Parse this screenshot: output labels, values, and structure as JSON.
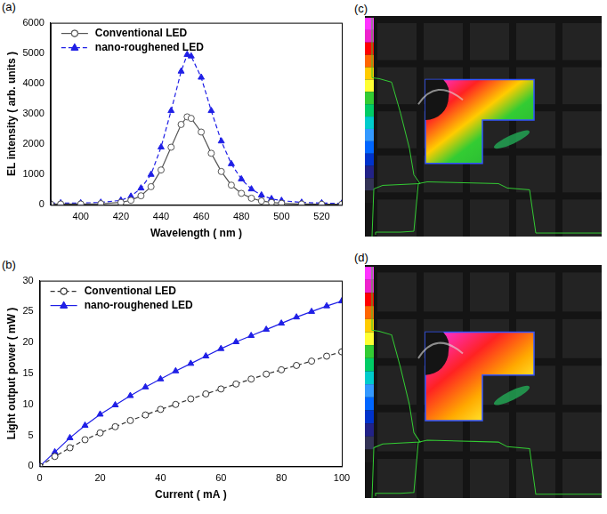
{
  "chart_data": [
    {
      "type": "line",
      "panel": "(a)",
      "x_label": "Wavelength ( nm )",
      "y_label": "EL intensity ( arb. units )",
      "x": [
        385,
        390,
        400,
        410,
        420,
        425,
        430,
        435,
        440,
        445,
        450,
        453,
        455,
        460,
        465,
        470,
        475,
        480,
        485,
        490,
        495,
        500,
        510,
        520,
        530
      ],
      "series": [
        {
          "name": "Conventional LED",
          "color": "#555555",
          "marker": "open_circle",
          "line_style": "solid",
          "values": [
            30,
            30,
            30,
            40,
            80,
            150,
            300,
            600,
            1150,
            1900,
            2650,
            2900,
            2850,
            2400,
            1700,
            1100,
            650,
            380,
            220,
            130,
            80,
            50,
            30,
            20,
            20
          ]
        },
        {
          "name": "nano-roughened LED",
          "color": "#1f1fe6",
          "marker": "triangle",
          "line_style": "dashed",
          "values": [
            60,
            60,
            60,
            80,
            150,
            280,
            550,
            1000,
            1900,
            3100,
            4400,
            4950,
            4900,
            4200,
            3100,
            2100,
            1350,
            850,
            520,
            320,
            200,
            140,
            80,
            60,
            50
          ]
        }
      ],
      "xlim": [
        385,
        530
      ],
      "xticks": [
        400,
        420,
        440,
        460,
        480,
        500,
        520
      ],
      "ylim": [
        0,
        6000
      ],
      "yticks": [
        0,
        1000,
        2000,
        3000,
        4000,
        5000,
        6000
      ],
      "grid": false,
      "legend": "upper left"
    },
    {
      "type": "line",
      "panel": "(b)",
      "x_label": "Current ( mA )",
      "y_label": "Light output power ( mW )",
      "x": [
        0,
        5,
        10,
        15,
        20,
        25,
        30,
        35,
        40,
        45,
        50,
        55,
        60,
        65,
        70,
        75,
        80,
        85,
        90,
        95,
        100
      ],
      "series": [
        {
          "name": "Conventional LED",
          "color": "#333333",
          "marker": "open_circle",
          "line_style": "dashed",
          "values": [
            0,
            1.6,
            3.0,
            4.3,
            5.4,
            6.4,
            7.4,
            8.3,
            9.2,
            10.0,
            10.9,
            11.7,
            12.5,
            13.3,
            14.1,
            14.9,
            15.6,
            16.3,
            17.0,
            17.8,
            18.5
          ]
        },
        {
          "name": "nano-roughened LED",
          "color": "#1f1fe6",
          "marker": "triangle",
          "line_style": "solid",
          "values": [
            0,
            2.3,
            4.6,
            6.6,
            8.4,
            9.9,
            11.4,
            12.8,
            14.1,
            15.4,
            16.6,
            17.8,
            19.0,
            20.1,
            21.1,
            22.1,
            23.1,
            24.1,
            25.0,
            25.9,
            26.7
          ]
        }
      ],
      "xlim": [
        0,
        100
      ],
      "xticks": [
        0,
        20,
        40,
        60,
        80,
        100
      ],
      "ylim": [
        0,
        30
      ],
      "yticks": [
        0,
        5,
        10,
        15,
        20,
        25,
        30
      ],
      "grid": false,
      "legend": "upper left"
    }
  ],
  "images": [
    {
      "panel": "(c)",
      "type": "image"
    },
    {
      "panel": "(d)",
      "type": "image"
    }
  ]
}
